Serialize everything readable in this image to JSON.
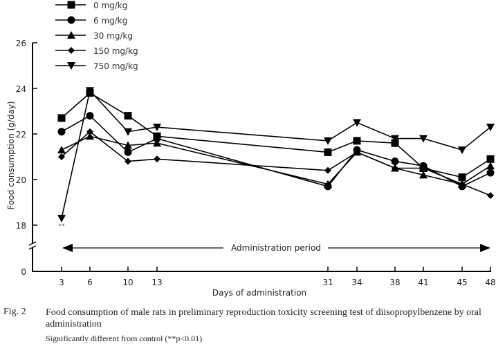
{
  "chart_data": {
    "type": "line",
    "title": "",
    "xlabel": "Days of administration",
    "ylabel": "Food consumption (g/day)",
    "x": [
      3,
      6,
      10,
      13,
      31,
      34,
      38,
      41,
      45,
      48
    ],
    "x_tick_labels": [
      "3",
      "6",
      "10",
      "13",
      "31",
      "34",
      "38",
      "41",
      "45",
      "48"
    ],
    "y_tick_labels": [
      "0",
      "18",
      "20",
      "22",
      "24",
      "26"
    ],
    "ylim": [
      18,
      26
    ],
    "y_axis_break": "between 0 and 18",
    "grid": false,
    "legend_position": "top-left",
    "series": [
      {
        "name": "0 mg/kg",
        "marker": "square",
        "values": [
          22.7,
          23.8,
          22.8,
          21.9,
          21.2,
          21.7,
          21.6,
          20.5,
          20.1,
          20.9
        ]
      },
      {
        "name": "6 mg/kg",
        "marker": "circle",
        "values": [
          22.1,
          22.8,
          21.2,
          21.8,
          19.7,
          21.3,
          20.8,
          20.6,
          19.7,
          20.3
        ]
      },
      {
        "name": "30 mg/kg",
        "marker": "triangle-up",
        "values": [
          21.3,
          21.9,
          21.5,
          21.6,
          19.8,
          21.2,
          20.5,
          20.2,
          19.8,
          20.6
        ]
      },
      {
        "name": "150 mg/kg",
        "marker": "diamond",
        "values": [
          21.0,
          22.1,
          20.8,
          20.9,
          20.4,
          21.2,
          20.5,
          20.5,
          19.8,
          19.3
        ]
      },
      {
        "name": "750 mg/kg",
        "marker": "triangle-down",
        "values": [
          18.3,
          23.9,
          22.1,
          22.3,
          21.7,
          22.5,
          21.8,
          21.8,
          21.3,
          22.3
        ]
      }
    ],
    "annotations": [
      {
        "text": "**",
        "x": 3,
        "series": "750 mg/kg",
        "meaning": "significant"
      },
      {
        "text": "Administration period",
        "type": "double-arrow",
        "from": 3,
        "to": 48
      }
    ]
  },
  "caption": {
    "figure_number": "Fig. 2",
    "text": "Food consumption of male rats in preliminary reproduction toxicity screening test of diisopropylbenzene by oral administration",
    "note": "Significantly different from control (**p<0.01)"
  }
}
